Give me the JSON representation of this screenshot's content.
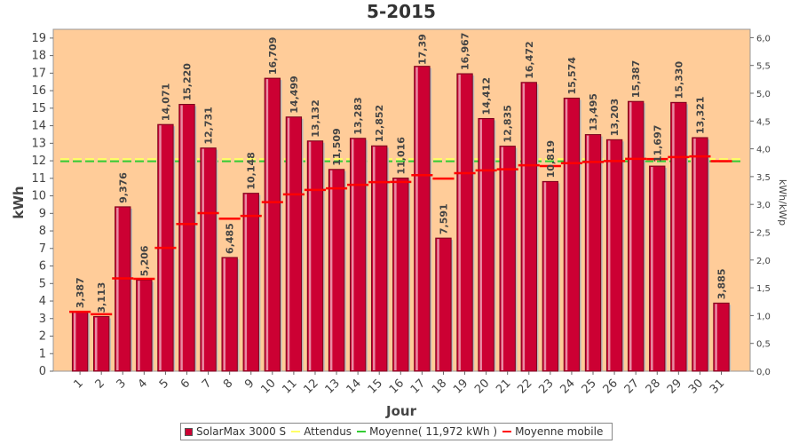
{
  "chart_data": {
    "type": "bar",
    "title": "5-2015",
    "xlabel": "Jour",
    "ylabel": "kWh",
    "ylabel_right": "kWh/kWp",
    "ylim": [
      0,
      19.5
    ],
    "ylim_right": [
      0,
      6.15
    ],
    "yticks": [
      "0",
      "1",
      "2",
      "3",
      "4",
      "5",
      "6",
      "7",
      "8",
      "9",
      "10",
      "11",
      "12",
      "13",
      "14",
      "15",
      "16",
      "17",
      "18",
      "19"
    ],
    "yticks_right": [
      "0,0",
      "0,5",
      "1,0",
      "1,5",
      "2,0",
      "2,5",
      "3,0",
      "3,5",
      "4,0",
      "4,5",
      "5,0",
      "5,5",
      "6,0"
    ],
    "categories": [
      "1",
      "2",
      "3",
      "4",
      "5",
      "6",
      "7",
      "8",
      "9",
      "10",
      "11",
      "12",
      "13",
      "14",
      "15",
      "16",
      "17",
      "18",
      "19",
      "20",
      "21",
      "22",
      "23",
      "24",
      "25",
      "26",
      "27",
      "28",
      "29",
      "30",
      "31"
    ],
    "series": [
      {
        "name": "SolarMax 3000 S",
        "type": "bar",
        "color": "#cc0033",
        "values": [
          3.387,
          3.113,
          9.376,
          5.206,
          14.071,
          15.22,
          12.731,
          6.485,
          10.148,
          16.709,
          14.499,
          13.132,
          11.509,
          13.283,
          12.852,
          11.016,
          17.39,
          7.591,
          16.967,
          14.412,
          12.835,
          16.472,
          10.819,
          15.574,
          13.495,
          13.203,
          15.387,
          11.697,
          15.33,
          13.321,
          3.885
        ],
        "labels": [
          "3,387",
          "3,113",
          "9,376",
          "5,206",
          "14,071",
          "15,220",
          "12,731",
          "6,485",
          "10,148",
          "16,709",
          "14,499",
          "13,132",
          "11,509",
          "13,283",
          "12,852",
          "11,016",
          "17,39",
          "7,591",
          "16,967",
          "14,412",
          "12,835",
          "16,472",
          "10,819",
          "15,574",
          "13,495",
          "13,203",
          "15,387",
          "11,697",
          "15,330",
          "13,321",
          "3,885"
        ]
      },
      {
        "name": "Attendus",
        "type": "line",
        "color": "#ffff66",
        "values": [
          12.1,
          12.1,
          12.1,
          12.1,
          12.1,
          12.1,
          12.1,
          12.1,
          12.1,
          12.1,
          12.1,
          12.1,
          12.1,
          12.1,
          12.1,
          12.1,
          12.1,
          12.1,
          12.1,
          12.1,
          12.1,
          12.1,
          12.1,
          12.1,
          12.1,
          12.1,
          12.1,
          12.1,
          12.1,
          12.1,
          12.1
        ]
      },
      {
        "name": "Moyenne( 11,972 kWh )",
        "type": "line",
        "color": "#33cc33",
        "values": [
          11.972,
          11.972,
          11.972,
          11.972,
          11.972,
          11.972,
          11.972,
          11.972,
          11.972,
          11.972,
          11.972,
          11.972,
          11.972,
          11.972,
          11.972,
          11.972,
          11.972,
          11.972,
          11.972,
          11.972,
          11.972,
          11.972,
          11.972,
          11.972,
          11.972,
          11.972,
          11.972,
          11.972,
          11.972,
          11.972,
          11.972
        ]
      },
      {
        "name": "Moyenne mobile",
        "type": "step",
        "color": "#ff0000",
        "values": [
          3.387,
          3.25,
          5.292,
          5.27,
          7.031,
          8.396,
          9.015,
          8.699,
          8.859,
          9.644,
          10.086,
          10.339,
          10.429,
          10.633,
          10.779,
          10.794,
          11.182,
          10.982,
          11.296,
          11.452,
          11.518,
          11.743,
          11.703,
          11.864,
          11.936,
          11.988,
          12.114,
          12.102,
          12.214,
          12.25,
          11.98
        ]
      }
    ],
    "grid": false,
    "legend_position": "bottom",
    "colors": {
      "plot_bg": "#ffcc99",
      "bar": "#cc0033",
      "bar_edge": "#7a001c"
    }
  }
}
